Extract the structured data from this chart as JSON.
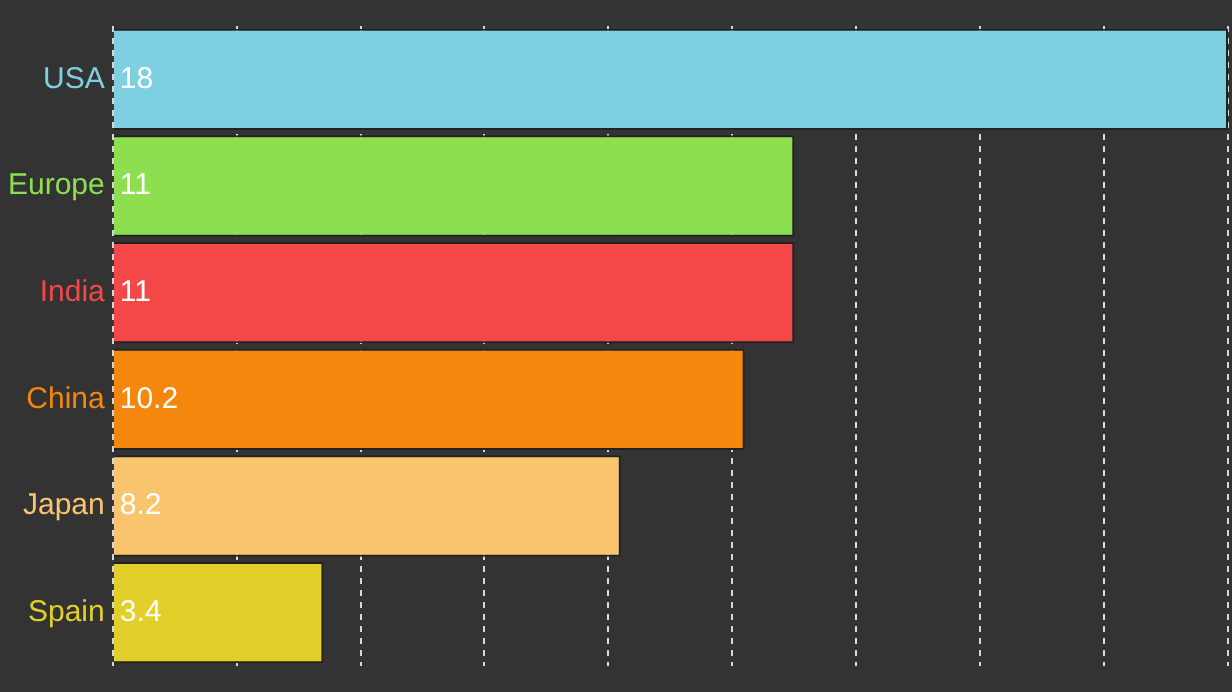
{
  "chart_data": {
    "type": "bar",
    "orientation": "horizontal",
    "categories": [
      "USA",
      "Europe",
      "India",
      "China",
      "Japan",
      "Spain"
    ],
    "values": [
      18,
      11,
      11,
      10.2,
      8.2,
      3.4
    ],
    "colors": [
      "#7ecfe0",
      "#8ddf50",
      "#f44848",
      "#f5870f",
      "#f8c56e",
      "#e2cf2a"
    ],
    "xlim": [
      0,
      18
    ],
    "xticks": [
      {
        "value": 0,
        "label": null
      },
      {
        "value": 2,
        "label": null
      },
      {
        "value": 4,
        "label": null
      },
      {
        "value": 6,
        "label": null
      },
      {
        "value": 8,
        "label": null
      },
      {
        "value": 10,
        "label": null
      },
      {
        "value": 12,
        "label": null
      },
      {
        "value": 14,
        "label": null
      },
      {
        "value": 16,
        "label": null
      },
      {
        "value": 18,
        "label": null
      }
    ],
    "grid": "x",
    "tick_labels": "y",
    "data_labels": true,
    "legend": false
  }
}
